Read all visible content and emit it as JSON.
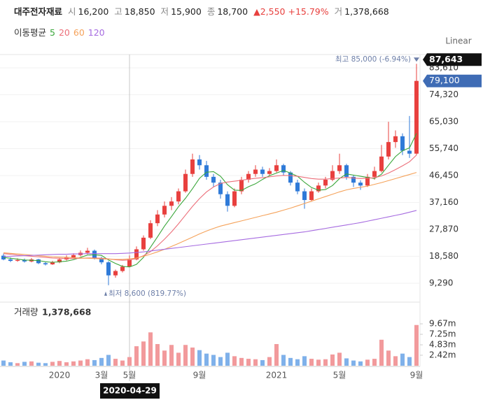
{
  "header": {
    "name": "대주전자재료",
    "fields": [
      {
        "label": "시",
        "value": "16,200"
      },
      {
        "label": "고",
        "value": "18,850"
      },
      {
        "label": "저",
        "value": "15,900"
      },
      {
        "label": "종",
        "value": "18,700"
      }
    ],
    "change": "▲2,550",
    "change_pct": "+15.79%",
    "volume": {
      "label": "거",
      "value": "1,378,668"
    }
  },
  "scale_label": "Linear",
  "chart_data": [
    {
      "type": "candlestick",
      "ma_label": "이동평균",
      "categories": [
        null,
        null,
        null,
        null,
        null,
        null,
        null,
        null,
        "2020",
        null,
        null,
        null,
        null,
        null,
        "3월",
        null,
        null,
        null,
        "5월",
        null,
        null,
        null,
        null,
        null,
        null,
        null,
        null,
        null,
        "9월",
        null,
        null,
        null,
        null,
        null,
        null,
        null,
        null,
        null,
        null,
        "2021",
        null,
        null,
        null,
        null,
        null,
        null,
        null,
        null,
        "5월",
        null,
        null,
        null,
        null,
        null,
        null,
        null,
        null,
        null,
        null,
        "9월"
      ],
      "open": [
        18800,
        17500,
        17000,
        17300,
        16800,
        17500,
        16200,
        15800,
        16500,
        17500,
        18200,
        19000,
        19800,
        20500,
        18000,
        16500,
        12000,
        13500,
        15000,
        17500,
        21000,
        25000,
        30000,
        33000,
        36000,
        37500,
        41000,
        47000,
        52000,
        50000,
        46000,
        44000,
        40000,
        36000,
        41000,
        45000,
        47000,
        48500,
        47000,
        48000,
        50000,
        47500,
        44000,
        41000,
        38000,
        41000,
        43000,
        45000,
        48000,
        50000,
        46000,
        44000,
        43000,
        46000,
        48000,
        53000,
        58000,
        60000,
        55000,
        54000
      ],
      "high": [
        19500,
        18200,
        17900,
        17800,
        18000,
        17700,
        16600,
        17000,
        18000,
        18900,
        19600,
        20600,
        21500,
        20900,
        18400,
        16900,
        14000,
        15600,
        18850,
        22000,
        25800,
        31000,
        34500,
        37500,
        39000,
        42000,
        48500,
        54000,
        53500,
        51500,
        47000,
        45000,
        41000,
        42000,
        46000,
        48000,
        50000,
        49500,
        49000,
        52000,
        50500,
        48000,
        45000,
        42000,
        42000,
        44000,
        46000,
        50000,
        54000,
        50500,
        46500,
        44800,
        47000,
        49500,
        57000,
        65000,
        62000,
        61000,
        67000,
        85000
      ],
      "low": [
        17200,
        16600,
        16700,
        16400,
        16500,
        15900,
        15400,
        15600,
        16200,
        17100,
        17800,
        18600,
        19200,
        17500,
        15800,
        8600,
        11200,
        13000,
        14800,
        17200,
        20500,
        24500,
        29000,
        32000,
        34500,
        36500,
        40500,
        46000,
        48500,
        45000,
        42500,
        38500,
        34000,
        35500,
        40000,
        44000,
        46000,
        46000,
        46500,
        47500,
        46500,
        43000,
        40000,
        35000,
        37500,
        40500,
        42000,
        44500,
        47000,
        45000,
        42500,
        41500,
        42500,
        45000,
        47500,
        52000,
        56000,
        53500,
        52500,
        53500
      ],
      "close": [
        17500,
        17000,
        17300,
        16800,
        17500,
        16200,
        15800,
        16500,
        17500,
        18200,
        19000,
        19800,
        20500,
        18000,
        16500,
        12000,
        13500,
        15000,
        17500,
        21000,
        25000,
        30000,
        33000,
        36000,
        37500,
        41000,
        47000,
        52000,
        50000,
        46000,
        44000,
        40000,
        36000,
        41000,
        45000,
        47000,
        48500,
        47000,
        48000,
        50000,
        47500,
        44000,
        41000,
        38000,
        41000,
        43000,
        45000,
        48000,
        50000,
        46000,
        44000,
        43000,
        46000,
        48000,
        53000,
        58000,
        60000,
        55000,
        54000,
        79100
      ],
      "up_color": "#e8403e",
      "down_color": "#2f7ad8",
      "series": [
        {
          "name": "5",
          "color": "#3aa63a",
          "values": [
            18200,
            17900,
            17600,
            17300,
            17200,
            17100,
            16700,
            16500,
            16700,
            16900,
            17400,
            18200,
            19000,
            19100,
            18900,
            17300,
            16100,
            15100,
            14900,
            15800,
            18200,
            21700,
            25300,
            29000,
            32300,
            35700,
            38600,
            41900,
            45500,
            47600,
            47800,
            46200,
            43300,
            41400,
            41300,
            42600,
            43600,
            45100,
            46400,
            47300,
            48200,
            47300,
            46200,
            44100,
            42300,
            41400,
            41600,
            43000,
            45400,
            47000,
            46600,
            46200,
            45800,
            45400,
            46900,
            50000,
            53000,
            55000,
            56000,
            61000
          ]
        },
        {
          "name": "20",
          "color": "#ec6f7a",
          "values": [
            19500,
            19300,
            19000,
            18800,
            18600,
            18400,
            18200,
            18000,
            17900,
            17800,
            17800,
            17900,
            18000,
            18000,
            17900,
            17700,
            17400,
            17200,
            17300,
            17800,
            18800,
            20200,
            22200,
            24500,
            27000,
            29800,
            32800,
            35800,
            38500,
            40800,
            42500,
            43700,
            44200,
            44500,
            44800,
            45200,
            45500,
            45700,
            46000,
            46300,
            46500,
            46400,
            46200,
            45800,
            45400,
            45200,
            45200,
            45400,
            45600,
            45800,
            45600,
            45400,
            45500,
            45700,
            46300,
            47300,
            48500,
            49800,
            51200,
            53500
          ]
        },
        {
          "name": "60",
          "color": "#f5a25a",
          "values": [
            19800,
            19600,
            19400,
            19200,
            19000,
            18800,
            18600,
            18400,
            18300,
            18200,
            18100,
            18000,
            17900,
            17800,
            17700,
            17600,
            17500,
            17500,
            17700,
            18000,
            18600,
            19300,
            20100,
            21000,
            22000,
            23000,
            24100,
            25200,
            26300,
            27300,
            28200,
            29000,
            29600,
            30200,
            30800,
            31400,
            32000,
            32600,
            33200,
            33800,
            34500,
            35200,
            36000,
            36800,
            37600,
            38400,
            39200,
            40000,
            40800,
            41500,
            42000,
            42400,
            42800,
            43400,
            44000,
            44700,
            45400,
            46100,
            46800,
            47500
          ]
        },
        {
          "name": "120",
          "color": "#a66be0",
          "values": [
            18500,
            18600,
            18700,
            18800,
            18900,
            19000,
            19100,
            19200,
            19300,
            19300,
            19400,
            19400,
            19500,
            19500,
            19500,
            19500,
            19500,
            19600,
            19700,
            19900,
            20100,
            20400,
            20700,
            21000,
            21300,
            21600,
            21900,
            22200,
            22500,
            22800,
            23100,
            23400,
            23700,
            24000,
            24300,
            24600,
            24900,
            25200,
            25500,
            25800,
            26100,
            26400,
            26700,
            27000,
            27400,
            27800,
            28200,
            28600,
            29000,
            29400,
            29800,
            30200,
            30700,
            31200,
            31700,
            32200,
            32700,
            33200,
            33800,
            34400
          ]
        }
      ],
      "ylim": [
        2775,
        87712
      ],
      "yticks": [
        {
          "value": 83610,
          "label": "83,610"
        },
        {
          "value": 74320,
          "label": "74,320"
        },
        {
          "value": 65030,
          "label": "65,030"
        },
        {
          "value": 55740,
          "label": "55,740"
        },
        {
          "value": 46450,
          "label": "46,450"
        },
        {
          "value": 37160,
          "label": "37,160"
        },
        {
          "value": 27870,
          "label": "27,870"
        },
        {
          "value": 18580,
          "label": "18,580"
        },
        {
          "value": 9290,
          "label": "9,290"
        }
      ],
      "grid": true,
      "annotations": [
        "최고 85,000 (-6.94%)",
        "최저 8,600 (819.77%)"
      ],
      "last_price": 79100,
      "last_price_label": "79,100",
      "crosshair": {
        "x_label": "2020-04-29",
        "y": 87643,
        "y_label": "87,643"
      }
    },
    {
      "type": "bar",
      "label": "거래량",
      "current_label": "1,378,668",
      "values": [
        1.2,
        0.8,
        0.6,
        0.9,
        1.0,
        0.7,
        0.6,
        0.9,
        1.1,
        0.8,
        1.0,
        1.2,
        1.5,
        1.3,
        1.8,
        2.5,
        1.6,
        1.2,
        2.0,
        4.5,
        5.6,
        7.7,
        5.0,
        3.5,
        4.8,
        3.0,
        4.8,
        4.2,
        3.6,
        2.8,
        2.5,
        2.0,
        3.0,
        2.2,
        1.8,
        1.6,
        1.5,
        1.3,
        2.0,
        5.0,
        2.5,
        1.8,
        1.5,
        2.2,
        1.6,
        1.4,
        1.5,
        2.6,
        3.0,
        1.7,
        1.2,
        1.0,
        1.4,
        1.6,
        6.0,
        3.5,
        2.2,
        2.8,
        2.0,
        9.4
      ],
      "up_color": "#f29a9c",
      "down_color": "#7fb1ea",
      "ylim": [
        0,
        14.2
      ],
      "yticks": [
        {
          "value": 9.67,
          "label": "9.67m"
        },
        {
          "value": 7.25,
          "label": "7.25m"
        },
        {
          "value": 4.83,
          "label": "4.83m"
        },
        {
          "value": 2.42,
          "label": "2.42m"
        }
      ]
    }
  ]
}
